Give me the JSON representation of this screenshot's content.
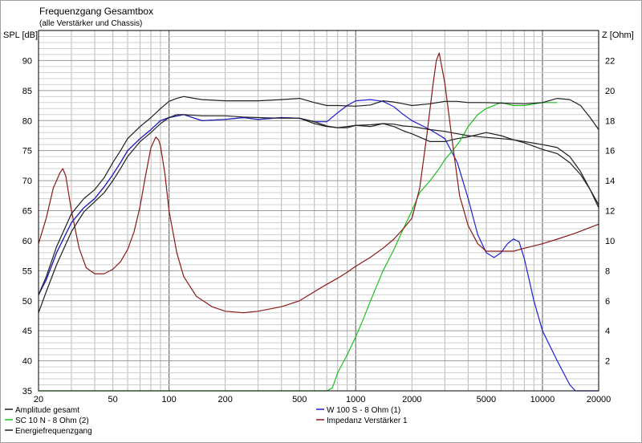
{
  "chart_data": {
    "type": "line",
    "title": "Frequenzgang Gesamtbox",
    "subtitle": "(alle Verstärker und Chassis)",
    "ylabel_left": "SPL [dB]",
    "ylabel_right": "Z [Ohm]",
    "xscale": "log",
    "xlim": [
      20,
      20000
    ],
    "ylim_left": [
      35,
      95
    ],
    "ylim_right": [
      0,
      24
    ],
    "grid": true,
    "x_tick_labels": [
      {
        "v": 20,
        "t": "20"
      },
      {
        "v": 50,
        "t": "50"
      },
      {
        "v": 100,
        "t": "100"
      },
      {
        "v": 200,
        "t": "200"
      },
      {
        "v": 500,
        "t": "500"
      },
      {
        "v": 1000,
        "t": "1000"
      },
      {
        "v": 2000,
        "t": "2000"
      },
      {
        "v": 5000,
        "t": "5000"
      },
      {
        "v": 10000,
        "t": "10000"
      },
      {
        "v": 20000,
        "t": "20000"
      }
    ],
    "y_left_ticks": [
      35,
      40,
      45,
      50,
      55,
      60,
      65,
      70,
      75,
      80,
      85,
      90
    ],
    "y_right_ticks": [
      2,
      4,
      6,
      8,
      10,
      12,
      14,
      16,
      18,
      20,
      22
    ],
    "series": [
      {
        "name": "Amplitude gesamt",
        "color": "#202020",
        "axis": "left",
        "x": [
          20,
          22,
          25,
          30,
          35,
          40,
          45,
          50,
          55,
          60,
          70,
          80,
          90,
          100,
          120,
          150,
          200,
          250,
          300,
          400,
          500,
          600,
          700,
          800,
          900,
          1000,
          1200,
          1400,
          1600,
          1800,
          2000,
          2500,
          3000,
          3500,
          4000,
          5000,
          6000,
          7000,
          8000,
          10000,
          12000,
          14000,
          16000,
          18000,
          20000
        ],
        "y": [
          51,
          53.5,
          58,
          63,
          65.5,
          67,
          69,
          71,
          73,
          75,
          77,
          78.5,
          80,
          80.5,
          81,
          80,
          80.2,
          80.5,
          80.2,
          80.5,
          80.4,
          79.5,
          79,
          78.8,
          78.8,
          79.2,
          79,
          79.5,
          79,
          78.3,
          77.8,
          76.5,
          76.5,
          77,
          77.3,
          78,
          77.5,
          76.8,
          76.3,
          75.2,
          74.5,
          73,
          71,
          68.5,
          66
        ]
      },
      {
        "name": "W 100 S - 8 Ohm (1)",
        "color": "#2020d0",
        "axis": "left",
        "x": [
          20,
          22,
          25,
          30,
          35,
          40,
          45,
          50,
          55,
          60,
          70,
          80,
          90,
          100,
          120,
          150,
          200,
          250,
          300,
          400,
          500,
          600,
          700,
          800,
          900,
          1000,
          1200,
          1400,
          1600,
          1800,
          2000,
          2500,
          3000,
          3500,
          4000,
          4500,
          5000,
          5500,
          6000,
          6500,
          7000,
          7500,
          8000,
          9000,
          10000,
          12000,
          14000,
          15000,
          16000,
          18000,
          20000
        ],
        "y": [
          51,
          53.5,
          58,
          63,
          65.5,
          67,
          69,
          71,
          73,
          75,
          77,
          78.5,
          80,
          80.5,
          81,
          80,
          80.2,
          80.5,
          80.2,
          80.5,
          80.4,
          79.8,
          79.8,
          81.3,
          82.5,
          83.3,
          83.5,
          83.2,
          82.3,
          81,
          80,
          78.5,
          77,
          73,
          67,
          61,
          58,
          57.2,
          58,
          59.5,
          60.3,
          59.8,
          57,
          50,
          45,
          40,
          36,
          35,
          35,
          35,
          35
        ]
      },
      {
        "name": "SC 10 N - 8 Ohm (2)",
        "color": "#20c020",
        "axis": "left",
        "x": [
          20,
          50,
          100,
          200,
          500,
          700,
          750,
          800,
          900,
          1000,
          1100,
          1200,
          1400,
          1600,
          1800,
          2000,
          2200,
          2500,
          2800,
          3000,
          3300,
          3600,
          4000,
          4500,
          5000,
          6000,
          7000,
          8000,
          10000,
          12000
        ],
        "y": [
          35,
          35,
          35,
          35,
          35,
          35,
          35.5,
          38,
          41,
          44,
          47,
          50,
          55,
          58.5,
          62,
          65,
          68,
          70,
          72,
          73.5,
          75,
          76.5,
          79,
          81,
          82,
          83,
          82.5,
          82.5,
          83,
          83
        ]
      },
      {
        "name": "Impedanz Verstärker 1",
        "color": "#8b1a1a",
        "axis": "right",
        "x": [
          20,
          22,
          24,
          26,
          27,
          28,
          30,
          33,
          36,
          40,
          45,
          50,
          55,
          60,
          65,
          70,
          75,
          80,
          85,
          88,
          90,
          95,
          100,
          110,
          120,
          140,
          170,
          200,
          250,
          300,
          400,
          500,
          600,
          700,
          800,
          900,
          1000,
          1200,
          1400,
          1600,
          1800,
          2000,
          2200,
          2400,
          2600,
          2700,
          2800,
          3000,
          3300,
          3600,
          4000,
          4500,
          5000,
          5500,
          6000,
          7000,
          8000,
          10000,
          12000,
          15000,
          20000
        ],
        "y": [
          9.8,
          11.5,
          13.5,
          14.5,
          14.8,
          14.3,
          12,
          9.5,
          8.2,
          7.8,
          7.8,
          8.1,
          8.6,
          9.4,
          10.6,
          12.3,
          14.4,
          16.2,
          16.9,
          16.7,
          16.3,
          14.5,
          12,
          9.2,
          7.6,
          6.3,
          5.6,
          5.3,
          5.2,
          5.3,
          5.6,
          6,
          6.6,
          7.1,
          7.5,
          7.9,
          8.3,
          8.9,
          9.5,
          10.1,
          10.8,
          11.5,
          13.5,
          17,
          20.5,
          22,
          22.5,
          20.5,
          16.5,
          13,
          11,
          9.8,
          9.3,
          9.3,
          9.3,
          9.3,
          9.5,
          9.8,
          10.1,
          10.5,
          11.1
        ]
      },
      {
        "name": "Energiefrequenzgang",
        "color": "#202020",
        "axis": "left",
        "x": [
          20,
          22,
          25,
          30,
          35,
          40,
          45,
          50,
          55,
          60,
          70,
          80,
          90,
          100,
          110,
          120,
          150,
          200,
          250,
          300,
          400,
          500,
          600,
          700,
          800,
          1000,
          1200,
          1400,
          1600,
          1800,
          2000,
          2500,
          3000,
          3500,
          4000,
          5000,
          6000,
          7000,
          8000,
          10000,
          12000,
          14000,
          16000,
          18000,
          20000
        ],
        "y": [
          48,
          51.5,
          56,
          61.5,
          64.8,
          66.5,
          68,
          70,
          72,
          74,
          76.5,
          78,
          79.5,
          80.5,
          81,
          81,
          80.8,
          80.8,
          80.6,
          80.5,
          80.4,
          80.4,
          79.8,
          79.1,
          78.8,
          79.2,
          79.3,
          79.5,
          79.4,
          79.1,
          79,
          78.5,
          78.2,
          77.8,
          77.5,
          77.2,
          77,
          76.8,
          76.5,
          76,
          75.5,
          74,
          71.5,
          68.5,
          65.5
        ]
      },
      {
        "name": "",
        "color": "#202020",
        "axis": "left",
        "x": [
          20,
          22,
          25,
          30,
          35,
          40,
          45,
          50,
          55,
          60,
          70,
          80,
          90,
          100,
          110,
          120,
          150,
          200,
          250,
          300,
          400,
          500,
          600,
          700,
          800,
          1000,
          1200,
          1400,
          1600,
          1800,
          2000,
          2500,
          3000,
          3500,
          4000,
          5000,
          6000,
          8000,
          10000,
          12000,
          14000,
          16000,
          18000,
          20000
        ],
        "y": [
          51,
          54,
          59,
          64.5,
          67,
          68.5,
          70.5,
          73,
          75,
          77,
          79,
          80.5,
          82,
          83.2,
          83.7,
          84,
          83.5,
          83.3,
          83.3,
          83.3,
          83.5,
          83.7,
          83,
          82.5,
          82.5,
          82.4,
          82.6,
          83.3,
          83.1,
          82.8,
          82.5,
          82.8,
          83.2,
          83.2,
          83,
          83,
          82.9,
          82.8,
          83,
          83.7,
          83.5,
          82.5,
          80.5,
          78.5
        ]
      }
    ],
    "legend": [
      {
        "label": "Amplitude gesamt",
        "color": "#202020"
      },
      {
        "label": "SC 10 N - 8 Ohm (2)",
        "color": "#20c020"
      },
      {
        "label": "Energiefrequenzgang",
        "color": "#202020"
      },
      {
        "label": "W 100 S - 8 Ohm (1)",
        "color": "#2020d0"
      },
      {
        "label": "Impedanz Verstärker 1",
        "color": "#8b1a1a"
      }
    ]
  }
}
